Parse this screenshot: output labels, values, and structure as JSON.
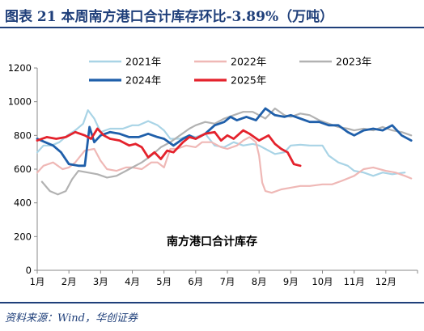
{
  "header": {
    "title": "图表  21    本周南方港口合计库存环比-3.89%（万吨）"
  },
  "footer": {
    "source": "资料来源：Wind，华创证券"
  },
  "chart_data": {
    "type": "line",
    "title": "南方港口合计库存",
    "x_ticks": [
      "1月",
      "2月",
      "3月",
      "4月",
      "5月",
      "6月",
      "7月",
      "8月",
      "9月",
      "10月",
      "11月",
      "12月"
    ],
    "ylim": [
      0,
      1200
    ],
    "y_ticks": [
      0,
      200,
      400,
      600,
      800,
      1000,
      1200
    ],
    "grid": false,
    "legend": "top",
    "x_unit": "month",
    "series": [
      {
        "name": "2021年",
        "color": "#a9d4e6",
        "width": 2.2,
        "x": [
          1.0,
          1.2,
          1.45,
          1.7,
          1.95,
          2.2,
          2.45,
          2.6,
          2.8,
          3.0,
          3.3,
          3.7,
          4.0,
          4.2,
          4.5,
          4.8,
          5.0,
          5.2,
          5.5,
          5.8,
          6.0,
          6.3,
          6.6,
          6.9,
          7.2,
          7.5,
          7.8,
          8.0,
          8.2,
          8.5,
          8.8,
          9.0,
          9.3,
          9.6,
          9.8,
          10.0,
          10.2,
          10.5,
          10.8,
          11.0,
          11.3,
          11.6,
          11.9,
          12.2,
          12.6
        ],
        "y": [
          700,
          740,
          740,
          760,
          800,
          830,
          870,
          950,
          900,
          820,
          840,
          840,
          860,
          860,
          885,
          860,
          830,
          780,
          780,
          800,
          790,
          810,
          740,
          730,
          760,
          740,
          750,
          740,
          720,
          690,
          700,
          740,
          745,
          740,
          740,
          740,
          680,
          640,
          620,
          590,
          580,
          560,
          580,
          570,
          580
        ]
      },
      {
        "name": "2022年",
        "color": "#efb8b6",
        "width": 2.2,
        "x": [
          1.0,
          1.2,
          1.5,
          1.8,
          2.0,
          2.2,
          2.5,
          2.8,
          3.0,
          3.2,
          3.5,
          3.8,
          4.0,
          4.3,
          4.6,
          4.8,
          5.0,
          5.2,
          5.4,
          5.7,
          6.0,
          6.2,
          6.5,
          6.8,
          7.0,
          7.3,
          7.5,
          7.7,
          7.9,
          8.0,
          8.1,
          8.2,
          8.4,
          8.7,
          9.0,
          9.3,
          9.6,
          10.0,
          10.3,
          10.6,
          11.0,
          11.3,
          11.6,
          12.0,
          12.3,
          12.6,
          12.8
        ],
        "y": [
          580,
          620,
          640,
          600,
          610,
          640,
          710,
          720,
          650,
          600,
          590,
          610,
          610,
          600,
          640,
          640,
          610,
          720,
          720,
          740,
          730,
          760,
          760,
          730,
          720,
          740,
          770,
          790,
          760,
          680,
          520,
          470,
          460,
          480,
          490,
          500,
          500,
          510,
          510,
          530,
          560,
          600,
          610,
          590,
          580,
          560,
          545
        ]
      },
      {
        "name": "2023年",
        "color": "#b2b2b2",
        "width": 2.2,
        "x": [
          1.15,
          1.4,
          1.65,
          1.9,
          2.1,
          2.3,
          2.6,
          2.9,
          3.2,
          3.5,
          3.8,
          4.0,
          4.3,
          4.6,
          4.9,
          5.2,
          5.5,
          5.8,
          6.0,
          6.3,
          6.6,
          6.9,
          7.2,
          7.5,
          7.8,
          8.0,
          8.2,
          8.5,
          8.8,
          9.0,
          9.3,
          9.6,
          9.9,
          10.2,
          10.5,
          10.8,
          11.0,
          11.3,
          11.6,
          11.9,
          12.2,
          12.5,
          12.8
        ],
        "y": [
          525,
          470,
          450,
          470,
          540,
          590,
          580,
          570,
          550,
          560,
          590,
          610,
          640,
          680,
          730,
          760,
          800,
          840,
          860,
          880,
          870,
          900,
          920,
          940,
          940,
          920,
          900,
          960,
          920,
          910,
          930,
          920,
          890,
          870,
          850,
          840,
          830,
          840,
          830,
          850,
          830,
          820,
          800
        ]
      },
      {
        "name": "2024年",
        "color": "#1f5faa",
        "width": 2.8,
        "x": [
          1.0,
          1.25,
          1.5,
          1.75,
          2.0,
          2.3,
          2.5,
          2.65,
          2.8,
          3.0,
          3.3,
          3.6,
          3.9,
          4.2,
          4.5,
          4.8,
          5.0,
          5.3,
          5.6,
          5.8,
          6.0,
          6.3,
          6.6,
          6.9,
          7.1,
          7.3,
          7.6,
          7.9,
          8.2,
          8.5,
          8.8,
          9.0,
          9.3,
          9.6,
          9.9,
          10.2,
          10.5,
          10.8,
          11.0,
          11.3,
          11.6,
          11.9,
          12.2,
          12.5,
          12.8
        ],
        "y": [
          780,
          760,
          740,
          700,
          630,
          620,
          620,
          850,
          760,
          800,
          820,
          810,
          790,
          790,
          810,
          790,
          780,
          740,
          780,
          800,
          780,
          810,
          860,
          880,
          910,
          890,
          910,
          890,
          960,
          920,
          910,
          920,
          900,
          880,
          880,
          860,
          860,
          820,
          800,
          830,
          840,
          830,
          860,
          800,
          770
        ]
      },
      {
        "name": "2025年",
        "color": "#e4222c",
        "width": 2.8,
        "x": [
          1.0,
          1.3,
          1.6,
          1.9,
          2.2,
          2.5,
          2.7,
          2.9,
          3.1,
          3.3,
          3.6,
          3.9,
          4.1,
          4.3,
          4.5,
          4.7,
          4.9,
          5.1,
          5.3,
          5.6,
          5.8,
          6.0,
          6.3,
          6.6,
          6.8,
          7.0,
          7.2,
          7.5,
          7.7,
          8.0,
          8.3,
          8.5,
          8.7,
          8.9,
          9.1,
          9.3
        ],
        "y": [
          770,
          790,
          780,
          790,
          820,
          800,
          780,
          840,
          800,
          780,
          770,
          740,
          750,
          730,
          670,
          700,
          660,
          710,
          700,
          760,
          790,
          780,
          810,
          820,
          770,
          800,
          780,
          830,
          810,
          770,
          800,
          750,
          720,
          700,
          630,
          620
        ]
      }
    ]
  }
}
